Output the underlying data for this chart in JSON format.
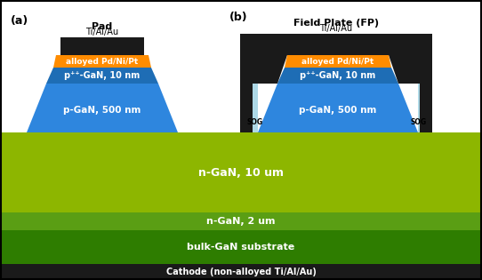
{
  "colors": {
    "black": "#1a1a1a",
    "dark_metal": "#1a1a1a",
    "orange": "#FF8C00",
    "blue_dark": "#1E6DB5",
    "blue_medium": "#2E86DE",
    "yellow_green": "#8DB600",
    "green_mid": "#5A9E14",
    "green_dark": "#2E7D00",
    "light_blue": "#ADD8E6",
    "white": "#FFFFFF",
    "bg": "#FFFFFF"
  },
  "labels": {
    "a_title": "(a)",
    "b_title": "(b)",
    "pad": "Pad",
    "field_plate": "Field Plate (FP)",
    "ti_al_au": "Ti/Al/Au",
    "alloyed": "alloyed Pd/Ni/Pt",
    "ppp_gan": "p⁺⁺-GaN, 10 nm",
    "p_gan": "p-GaN, 500 nm",
    "n_gan_10": "n-GaN, 10 um",
    "n_gan_2": "n-GaN, 2 um",
    "bulk": "bulk-GaN substrate",
    "cathode": "Cathode (non-alloyed Ti/Al/Au)",
    "sog": "SOG"
  }
}
